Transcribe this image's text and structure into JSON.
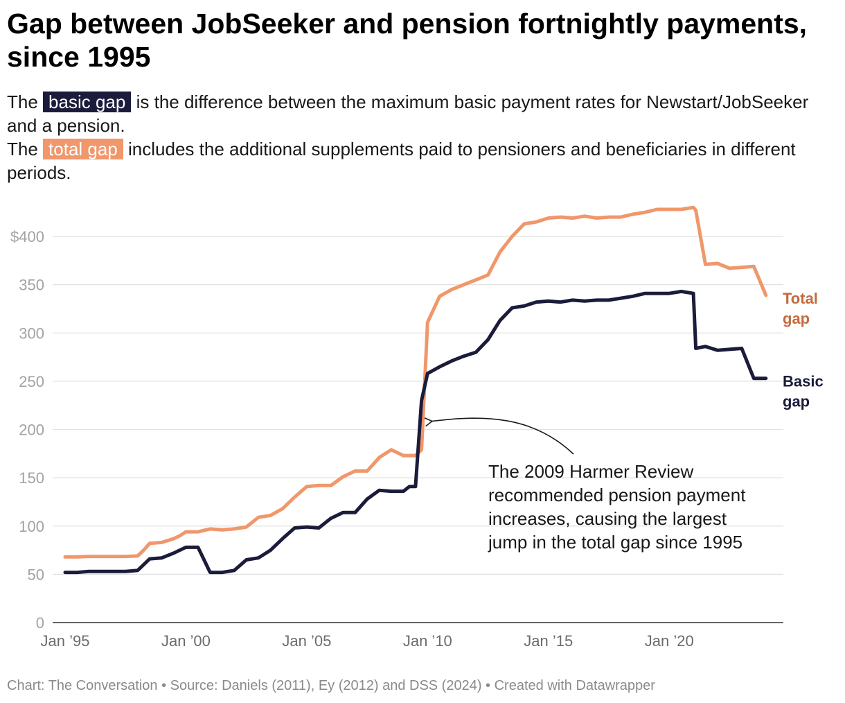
{
  "title": "Gap between JobSeeker and pension fortnightly payments, since 1995",
  "description": {
    "line1_prefix": "The",
    "line1_highlight": "basic gap",
    "line1_suffix": "is the difference between the maximum basic payment rates for Newstart/JobSeeker and a pension.",
    "line2_prefix": "The",
    "line2_highlight": "total gap",
    "line2_suffix": "includes the additional supplements paid to pensioners and beneficiaries in different periods."
  },
  "footer": "Chart: The Conversation • Source: Daniels (2011), Ey (2012) and DSS (2024) • Created with Datawrapper",
  "colors": {
    "basic": "#1b1c3b",
    "total": "#f0976b",
    "total_label": "#c66a3e",
    "grid": "#e1e1e1",
    "axis": "#333333"
  },
  "chart_data": {
    "type": "line",
    "ylim": [
      0,
      420
    ],
    "y_ticks": [
      0,
      50,
      100,
      150,
      200,
      250,
      300,
      350,
      400
    ],
    "y_tick_labels": [
      "0",
      "50",
      "100",
      "150",
      "200",
      "250",
      "300",
      "350",
      "$400"
    ],
    "x_range": [
      1995.0,
      2024.3
    ],
    "x_ticks": [
      1995,
      2000,
      2005,
      2010,
      2015,
      2020
    ],
    "x_tick_labels": [
      "Jan ’95",
      "Jan ’00",
      "Jan ’05",
      "Jan ’10",
      "Jan ’15",
      "Jan ’20"
    ],
    "grid": true,
    "series": [
      {
        "name": "Total gap",
        "label_lines": [
          "Total",
          "gap"
        ],
        "x": [
          1995.0,
          1995.5,
          1996.0,
          1996.5,
          1997.0,
          1997.5,
          1998.0,
          1998.25,
          1998.5,
          1999.0,
          1999.5,
          1999.75,
          2000.0,
          2000.25,
          2000.5,
          2001.0,
          2001.5,
          2002.0,
          2002.5,
          2003.0,
          2003.5,
          2004.0,
          2004.5,
          2005.0,
          2005.5,
          2006.0,
          2006.5,
          2007.0,
          2007.5,
          2008.0,
          2008.5,
          2009.0,
          2009.25,
          2009.5,
          2009.75,
          2010.0,
          2010.5,
          2011.0,
          2011.5,
          2012.0,
          2012.5,
          2013.0,
          2013.5,
          2014.0,
          2014.5,
          2015.0,
          2015.5,
          2016.0,
          2016.5,
          2017.0,
          2017.5,
          2018.0,
          2018.5,
          2019.0,
          2019.5,
          2020.0,
          2020.5,
          2021.0,
          2021.1,
          2021.5,
          2022.0,
          2022.5,
          2023.0,
          2023.5,
          2024.0
        ],
        "values": [
          68,
          68,
          68.5,
          68.5,
          68.5,
          68.5,
          69,
          75,
          82,
          83,
          87,
          90,
          94,
          94,
          94,
          97,
          96,
          97,
          99,
          109,
          111,
          118,
          130,
          141,
          142,
          142,
          151,
          157,
          157,
          171,
          179,
          173,
          173,
          173,
          179,
          311,
          338,
          345,
          350,
          355,
          360,
          384,
          400,
          413,
          415,
          419,
          420,
          419,
          421,
          419,
          420,
          420,
          423,
          425,
          428,
          428,
          428,
          430,
          427,
          371,
          372,
          367,
          368,
          369,
          339
        ]
      },
      {
        "name": "Basic gap",
        "label_lines": [
          "Basic",
          "gap"
        ],
        "x": [
          1995.0,
          1995.5,
          1996.0,
          1996.5,
          1997.0,
          1997.5,
          1998.0,
          1998.5,
          1999.0,
          1999.5,
          2000.0,
          2000.25,
          2000.5,
          2001.0,
          2001.5,
          2002.0,
          2002.5,
          2003.0,
          2003.5,
          2004.0,
          2004.5,
          2005.0,
          2005.5,
          2006.0,
          2006.5,
          2007.0,
          2007.5,
          2008.0,
          2008.5,
          2009.0,
          2009.25,
          2009.5,
          2009.75,
          2010.0,
          2010.5,
          2011.0,
          2011.5,
          2012.0,
          2012.5,
          2013.0,
          2013.5,
          2014.0,
          2014.5,
          2015.0,
          2015.5,
          2016.0,
          2016.5,
          2017.0,
          2017.5,
          2018.0,
          2018.5,
          2019.0,
          2019.5,
          2020.0,
          2020.5,
          2021.0,
          2021.1,
          2021.5,
          2022.0,
          2022.5,
          2023.0,
          2023.5,
          2024.0
        ],
        "values": [
          52,
          52,
          53,
          53,
          53,
          53,
          54,
          66,
          67,
          72,
          78,
          78,
          78,
          52,
          52,
          54,
          65,
          67,
          75,
          87,
          98,
          99,
          98,
          108,
          114,
          114,
          128,
          137,
          136,
          136,
          141,
          141,
          230,
          258,
          265,
          271,
          276,
          280,
          293,
          313,
          326,
          328,
          332,
          333,
          332,
          334,
          333,
          334,
          334,
          336,
          338,
          341,
          341,
          341,
          343,
          341,
          284,
          286,
          282,
          283,
          284,
          253,
          253
        ]
      }
    ],
    "annotation": {
      "lines": [
        "The 2009 Harmer Review",
        "recommended pension payment",
        "increases, causing the largest",
        "jump in the total gap since 1995"
      ],
      "target_x": 2009.9,
      "target_y": 210
    }
  }
}
